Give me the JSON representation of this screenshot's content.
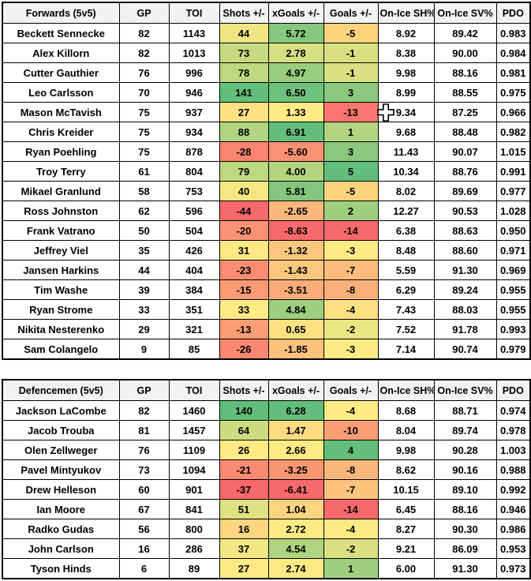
{
  "colors": {
    "header_bg": "#F2F2F2",
    "border": "#000000",
    "scale_min_red": "#F8696B",
    "scale_mid_yellow": "#FFEB84",
    "scale_max_green": "#63BE7B"
  },
  "cursor": {
    "shape": "excel-plus-cell-cursor",
    "over_cell": "Mason McTavish / On-Ice SH%"
  },
  "tables": [
    {
      "title": "Forwards (5v5)",
      "headers": [
        "GP",
        "TOI",
        "Shots +/-",
        "xGoals +/-",
        "Goals +/-",
        "On-Ice SH%",
        "On-Ice SV%",
        "PDO"
      ],
      "rows": [
        {
          "name": "Beckett Sennecke",
          "gp": "82",
          "toi": "1143",
          "shots": "44",
          "shots_bg": "#EFE683",
          "xg": "5.72",
          "xg_bg": "#84C87D",
          "goals": "-5",
          "goals_bg": "#FED37F",
          "sh": "8.92",
          "sv": "89.42",
          "pdo": "0.983"
        },
        {
          "name": "Alex Killorn",
          "gp": "82",
          "toi": "1013",
          "shots": "73",
          "shots_bg": "#C5DA81",
          "xg": "2.78",
          "xg_bg": "#D6DF82",
          "goals": "-1",
          "goals_bg": "#D8E082",
          "sh": "8.38",
          "sv": "90.00",
          "pdo": "0.984"
        },
        {
          "name": "Cutter Gauthier",
          "gp": "76",
          "toi": "996",
          "shots": "78",
          "shots_bg": "#BED880",
          "xg": "4.97",
          "xg_bg": "#99CE7E",
          "goals": "-1",
          "goals_bg": "#D8E082",
          "sh": "9.98",
          "sv": "88.16",
          "pdo": "0.981"
        },
        {
          "name": "Leo Carlsson",
          "gp": "70",
          "toi": "946",
          "shots": "141",
          "shots_bg": "#63BE7B",
          "xg": "6.50",
          "xg_bg": "#6EC17C",
          "goals": "3",
          "goals_bg": "#8AC97D",
          "sh": "8.99",
          "sv": "88.55",
          "pdo": "0.975"
        },
        {
          "name": "Mason McTavish",
          "gp": "75",
          "toi": "937",
          "shots": "27",
          "shots_bg": "#FEE182",
          "xg": "1.33",
          "xg_bg": "#FFEB84",
          "goals": "-13",
          "goals_bg": "#F9756D",
          "sh": "9.34",
          "sv": "87.25",
          "pdo": "0.966"
        },
        {
          "name": "Chris Kreider",
          "gp": "75",
          "toi": "934",
          "shots": "88",
          "shots_bg": "#B0D47F",
          "xg": "6.91",
          "xg_bg": "#63BE7B",
          "goals": "1",
          "goals_bg": "#B1D580",
          "sh": "9.68",
          "sv": "88.48",
          "pdo": "0.982"
        },
        {
          "name": "Ryan Poehling",
          "gp": "75",
          "toi": "878",
          "shots": "-28",
          "shots_bg": "#F98470",
          "xg": "-5.60",
          "xg_bg": "#FA9173",
          "goals": "3",
          "goals_bg": "#8AC97D",
          "sh": "11.43",
          "sv": "90.07",
          "pdo": "1.015"
        },
        {
          "name": "Troy Terry",
          "gp": "61",
          "toi": "804",
          "shots": "79",
          "shots_bg": "#BDD880",
          "xg": "4.00",
          "xg_bg": "#B4D580",
          "goals": "5",
          "goals_bg": "#63BE7B",
          "sh": "10.34",
          "sv": "88.76",
          "pdo": "0.991"
        },
        {
          "name": "Mikael Granlund",
          "gp": "58",
          "toi": "753",
          "shots": "40",
          "shots_bg": "#F5E883",
          "xg": "5.81",
          "xg_bg": "#82C77D",
          "goals": "-5",
          "goals_bg": "#FED37F",
          "sh": "8.02",
          "sv": "89.69",
          "pdo": "0.977"
        },
        {
          "name": "Ross Johnston",
          "gp": "62",
          "toi": "596",
          "shots": "-44",
          "shots_bg": "#F8696B",
          "xg": "-2.65",
          "xg_bg": "#FCB77A",
          "goals": "2",
          "goals_bg": "#9ECF7E",
          "sh": "12.27",
          "sv": "90.53",
          "pdo": "1.028"
        },
        {
          "name": "Frank Vatrano",
          "gp": "50",
          "toi": "504",
          "shots": "-20",
          "shots_bg": "#FA9273",
          "xg": "-8.63",
          "xg_bg": "#F8696B",
          "goals": "-14",
          "goals_bg": "#F8696B",
          "sh": "6.38",
          "sv": "88.63",
          "pdo": "0.950"
        },
        {
          "name": "Jeffrey Viel",
          "gp": "35",
          "toi": "426",
          "shots": "31",
          "shots_bg": "#FFE883",
          "xg": "-1.32",
          "xg_bg": "#FDC87D",
          "goals": "-3",
          "goals_bg": "#FFEB84",
          "sh": "8.48",
          "sv": "88.60",
          "pdo": "0.971"
        },
        {
          "name": "Jansen Harkins",
          "gp": "44",
          "toi": "404",
          "shots": "-23",
          "shots_bg": "#FA8C72",
          "xg": "-1.43",
          "xg_bg": "#FDC77D",
          "goals": "-7",
          "goals_bg": "#FCBC7B",
          "sh": "5.59",
          "sv": "91.30",
          "pdo": "0.969"
        },
        {
          "name": "Tim Washe",
          "gp": "39",
          "toi": "384",
          "shots": "-15",
          "shots_bg": "#FB9A74",
          "xg": "-3.51",
          "xg_bg": "#FCAC78",
          "goals": "-8",
          "goals_bg": "#FCB079",
          "sh": "6.29",
          "sv": "89.24",
          "pdo": "0.955"
        },
        {
          "name": "Ryan Strome",
          "gp": "33",
          "toi": "351",
          "shots": "33",
          "shots_bg": "#FFEB84",
          "xg": "4.84",
          "xg_bg": "#9DCF7E",
          "goals": "-4",
          "goals_bg": "#FEDF82",
          "sh": "7.43",
          "sv": "88.03",
          "pdo": "0.955"
        },
        {
          "name": "Nikita Nesterenko",
          "gp": "29",
          "toi": "321",
          "shots": "-13",
          "shots_bg": "#FB9D75",
          "xg": "0.65",
          "xg_bg": "#FEE282",
          "goals": "-2",
          "goals_bg": "#ECE583",
          "sh": "7.52",
          "sv": "91.78",
          "pdo": "0.993"
        },
        {
          "name": "Sam Colangelo",
          "gp": "9",
          "toi": "85",
          "shots": "-26",
          "shots_bg": "#FA8771",
          "xg": "-1.85",
          "xg_bg": "#FDC27C",
          "goals": "-3",
          "goals_bg": "#FFEB84",
          "sh": "7.14",
          "sv": "90.74",
          "pdo": "0.979"
        }
      ]
    },
    {
      "title": "Defencemen (5v5)",
      "headers": [
        "GP",
        "TOI",
        "Shots +/-",
        "xGoals +/-",
        "Goals +/-",
        "On-Ice SH%",
        "On-Ice SV%",
        "PDO"
      ],
      "rows": [
        {
          "name": "Jackson LaCombe",
          "gp": "82",
          "toi": "1460",
          "shots": "140",
          "shots_bg": "#63BE7B",
          "xg": "6.28",
          "xg_bg": "#63BE7B",
          "goals": "-4",
          "goals_bg": "#FFEB84",
          "sh": "8.68",
          "sv": "88.71",
          "pdo": "0.974"
        },
        {
          "name": "Jacob Trouba",
          "gp": "81",
          "toi": "1457",
          "shots": "64",
          "shots_bg": "#CCDC81",
          "xg": "1.47",
          "xg_bg": "#FEDA81",
          "goals": "-10",
          "goals_bg": "#FB9D75",
          "sh": "8.04",
          "sv": "89.74",
          "pdo": "0.978"
        },
        {
          "name": "Olen Zellweger",
          "gp": "76",
          "toi": "1109",
          "shots": "26",
          "shots_bg": "#FFEA84",
          "xg": "2.66",
          "xg_bg": "#FFEB84",
          "goals": "4",
          "goals_bg": "#63BE7B",
          "sh": "9.98",
          "sv": "90.28",
          "pdo": "1.003"
        },
        {
          "name": "Pavel Mintyukov",
          "gp": "73",
          "toi": "1094",
          "shots": "-21",
          "shots_bg": "#FA8A71",
          "xg": "-3.25",
          "xg_bg": "#FA9674",
          "goals": "-8",
          "goals_bg": "#FCB77A",
          "sh": "8.62",
          "sv": "90.16",
          "pdo": "0.988"
        },
        {
          "name": "Drew Helleson",
          "gp": "60",
          "toi": "901",
          "shots": "-37",
          "shots_bg": "#F8696B",
          "xg": "-6.41",
          "xg_bg": "#F8696B",
          "goals": "-7",
          "goals_bg": "#FDC47D",
          "sh": "10.15",
          "sv": "89.10",
          "pdo": "0.992"
        },
        {
          "name": "Ian Moore",
          "gp": "67",
          "toi": "841",
          "shots": "51",
          "shots_bg": "#DEE182",
          "xg": "1.04",
          "xg_bg": "#FED480",
          "goals": "-14",
          "goals_bg": "#F8696B",
          "sh": "6.45",
          "sv": "88.16",
          "pdo": "0.946"
        },
        {
          "name": "Radko Gudas",
          "gp": "56",
          "toi": "800",
          "shots": "16",
          "shots_bg": "#FED580",
          "xg": "2.72",
          "xg_bg": "#FCEA84",
          "goals": "-4",
          "goals_bg": "#FFEB84",
          "sh": "8.27",
          "sv": "90.30",
          "pdo": "0.986"
        },
        {
          "name": "John Carlson",
          "gp": "16",
          "toi": "286",
          "shots": "37",
          "shots_bg": "#F1E783",
          "xg": "4.54",
          "xg_bg": "#AED47F",
          "goals": "-2",
          "goals_bg": "#D8E082",
          "sh": "9.21",
          "sv": "86.09",
          "pdo": "0.953"
        },
        {
          "name": "Tyson Hinds",
          "gp": "6",
          "toi": "89",
          "shots": "27",
          "shots_bg": "#FFEB84",
          "xg": "2.74",
          "xg_bg": "#FCEA84",
          "goals": "1",
          "goals_bg": "#9ECF7E",
          "sh": "6.00",
          "sv": "91.30",
          "pdo": "0.973"
        }
      ]
    }
  ]
}
